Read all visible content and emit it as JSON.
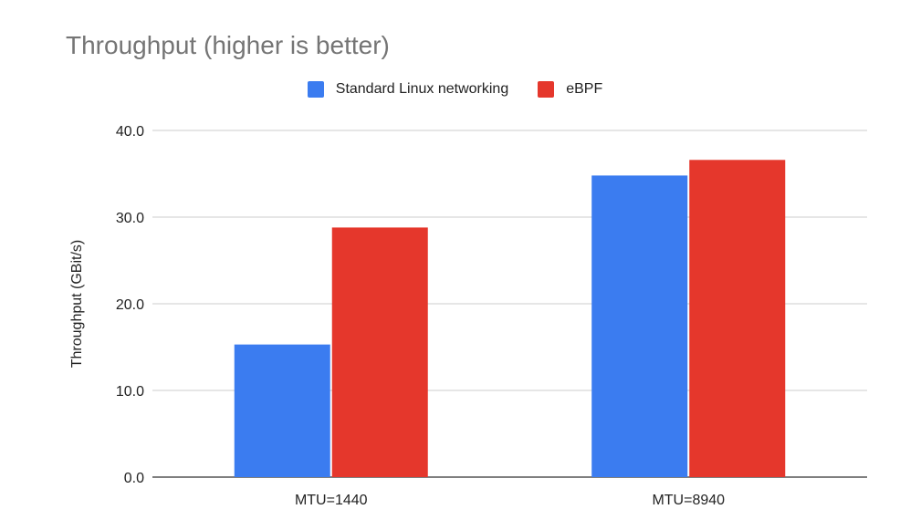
{
  "chart_data": {
    "type": "bar",
    "title": "Throughput (higher is better)",
    "xlabel": "",
    "ylabel": "Throughput (GBit/s)",
    "categories": [
      "MTU=1440",
      "MTU=8940"
    ],
    "series": [
      {
        "name": "Standard Linux networking",
        "color": "#3b7cf0",
        "values": [
          15.3,
          34.8
        ]
      },
      {
        "name": "eBPF",
        "color": "#e5372c",
        "values": [
          28.8,
          36.6
        ]
      }
    ],
    "ylim": [
      0,
      40
    ],
    "yticks": [
      "0.0",
      "10.0",
      "20.0",
      "30.0",
      "40.0"
    ],
    "grid": true,
    "legend": "top-center"
  }
}
